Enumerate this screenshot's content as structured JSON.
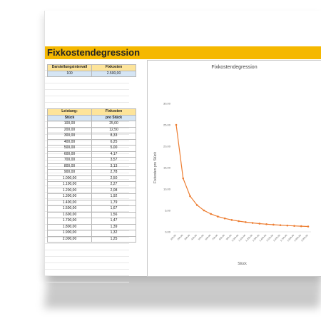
{
  "title": "Fixkostendegression",
  "params": {
    "headers": [
      "Darstellungsintervall",
      "Fixkosten"
    ],
    "values": [
      "100",
      "2.500,00"
    ]
  },
  "table": {
    "header1": [
      "Leistung:",
      "Fixkosten"
    ],
    "header2": [
      "Stück",
      "pro Stück"
    ],
    "rows": [
      [
        "100,00",
        "25,00"
      ],
      [
        "200,00",
        "12,50"
      ],
      [
        "300,00",
        "8,33"
      ],
      [
        "400,00",
        "6,25"
      ],
      [
        "500,00",
        "5,00"
      ],
      [
        "600,00",
        "4,17"
      ],
      [
        "700,00",
        "3,57"
      ],
      [
        "800,00",
        "3,13"
      ],
      [
        "900,00",
        "2,78"
      ],
      [
        "1.000,00",
        "2,50"
      ],
      [
        "1.100,00",
        "2,27"
      ],
      [
        "1.200,00",
        "2,08"
      ],
      [
        "1.300,00",
        "1,92"
      ],
      [
        "1.400,00",
        "1,79"
      ],
      [
        "1.500,00",
        "1,67"
      ],
      [
        "1.600,00",
        "1,56"
      ],
      [
        "1.700,00",
        "1,47"
      ],
      [
        "1.800,00",
        "1,39"
      ],
      [
        "1.900,00",
        "1,32"
      ],
      [
        "2.000,00",
        "1,25"
      ]
    ]
  },
  "colors": {
    "banner": "#f5b800",
    "header": "#fde49a",
    "sub": "#d5e5f4",
    "line": "#ed7d31"
  },
  "chart_data": {
    "type": "line",
    "title": "Fixkostendegression",
    "xlabel": "Stück",
    "ylabel": "Fixkosten pro Stück",
    "categories": [
      "100,00",
      "200,00",
      "300,00",
      "400,00",
      "500,00",
      "600,00",
      "700,00",
      "800,00",
      "900,00",
      "1.000,00",
      "1.100,00",
      "1.200,00",
      "1.300,00",
      "1.400,00",
      "1.500,00",
      "1.600,00",
      "1.700,00",
      "1.800,00",
      "1.900,00",
      "2.000,00"
    ],
    "values": [
      25.0,
      12.5,
      8.33,
      6.25,
      5.0,
      4.17,
      3.57,
      3.13,
      2.78,
      2.5,
      2.27,
      2.08,
      1.92,
      1.79,
      1.67,
      1.56,
      1.47,
      1.39,
      1.32,
      1.25
    ],
    "yticks": [
      "0,00",
      "5,00",
      "10,00",
      "15,00",
      "20,00",
      "25,00",
      "30,00"
    ],
    "ylim": [
      0,
      30
    ],
    "grid": false,
    "legend": "none"
  }
}
